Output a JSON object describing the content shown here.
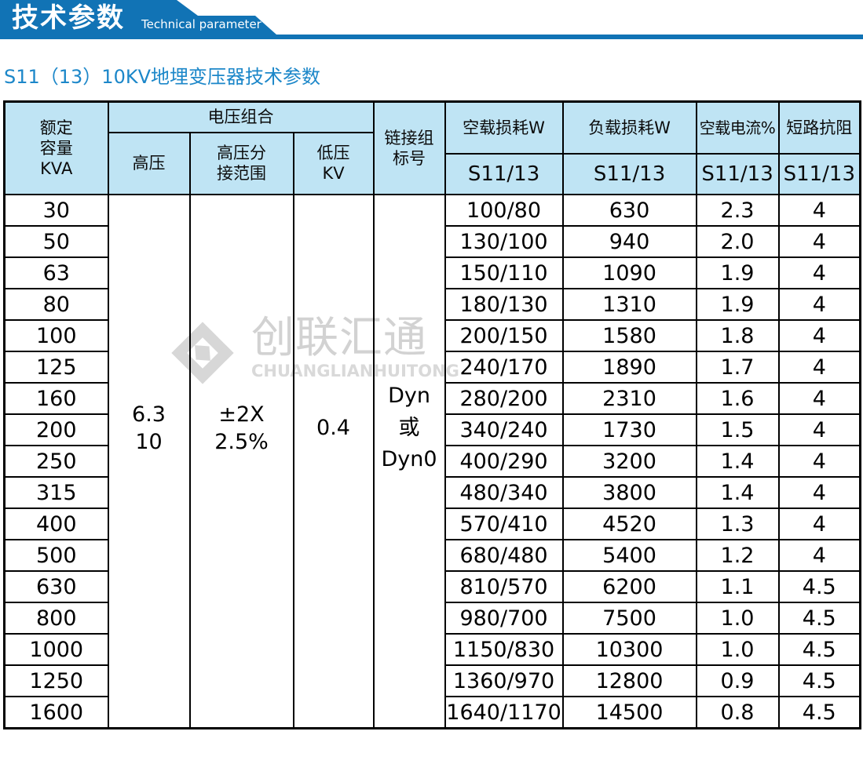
{
  "banner": {
    "title_cn": "技术参数",
    "title_en": "Technical parameter"
  },
  "section": {
    "heading": "S11（13）10KV地埋变压器技术参数"
  },
  "watermark": {
    "cn": "创联汇通",
    "en": "CHUANGLIANHUITONG",
    "logo_icon": "diamond-brand-logo"
  },
  "colors": {
    "banner_blue": "#1173b5",
    "heading_blue": "#1c87c9",
    "table_header_bg": "#bfe4f4",
    "table_border": "#000000",
    "watermark_gray": "#d2d2d2"
  },
  "table": {
    "headers": {
      "rated": "额定\n容量\nKVA",
      "voltage_group": "电压组合",
      "hv": "高压",
      "tap": "高压分\n接范围",
      "lv": "低压\nKV",
      "vector": "链接组\n标号",
      "noload_loss": "空载损耗W",
      "load_loss": "负载损耗W",
      "noload_current": "空载电流%",
      "impedance": "短路抗阻",
      "sub_model": "S11/13"
    },
    "merged": {
      "hv": "6.3\n10",
      "tap_range": "±2X\n2.5%",
      "lv": "0.4",
      "vector": "Dyn\n或\nDyn0"
    },
    "rows": [
      {
        "kva": "30",
        "noload_loss": "100/80",
        "load_loss": "630",
        "noload_current": "2.3",
        "impedance": "4"
      },
      {
        "kva": "50",
        "noload_loss": "130/100",
        "load_loss": "940",
        "noload_current": "2.0",
        "impedance": "4"
      },
      {
        "kva": "63",
        "noload_loss": "150/110",
        "load_loss": "1090",
        "noload_current": "1.9",
        "impedance": "4"
      },
      {
        "kva": "80",
        "noload_loss": "180/130",
        "load_loss": "1310",
        "noload_current": "1.9",
        "impedance": "4"
      },
      {
        "kva": "100",
        "noload_loss": "200/150",
        "load_loss": "1580",
        "noload_current": "1.8",
        "impedance": "4"
      },
      {
        "kva": "125",
        "noload_loss": "240/170",
        "load_loss": "1890",
        "noload_current": "1.7",
        "impedance": "4"
      },
      {
        "kva": "160",
        "noload_loss": "280/200",
        "load_loss": "2310",
        "noload_current": "1.6",
        "impedance": "4"
      },
      {
        "kva": "200",
        "noload_loss": "340/240",
        "load_loss": "1730",
        "noload_current": "1.5",
        "impedance": "4"
      },
      {
        "kva": "250",
        "noload_loss": "400/290",
        "load_loss": "3200",
        "noload_current": "1.4",
        "impedance": "4"
      },
      {
        "kva": "315",
        "noload_loss": "480/340",
        "load_loss": "3800",
        "noload_current": "1.4",
        "impedance": "4"
      },
      {
        "kva": "400",
        "noload_loss": "570/410",
        "load_loss": "4520",
        "noload_current": "1.3",
        "impedance": "4"
      },
      {
        "kva": "500",
        "noload_loss": "680/480",
        "load_loss": "5400",
        "noload_current": "1.2",
        "impedance": "4"
      },
      {
        "kva": "630",
        "noload_loss": "810/570",
        "load_loss": "6200",
        "noload_current": "1.1",
        "impedance": "4.5"
      },
      {
        "kva": "800",
        "noload_loss": "980/700",
        "load_loss": "7500",
        "noload_current": "1.0",
        "impedance": "4.5"
      },
      {
        "kva": "1000",
        "noload_loss": "1150/830",
        "load_loss": "10300",
        "noload_current": "1.0",
        "impedance": "4.5"
      },
      {
        "kva": "1250",
        "noload_loss": "1360/970",
        "load_loss": "12800",
        "noload_current": "0.9",
        "impedance": "4.5"
      },
      {
        "kva": "1600",
        "noload_loss": "1640/1170",
        "load_loss": "14500",
        "noload_current": "0.8",
        "impedance": "4.5"
      }
    ]
  }
}
